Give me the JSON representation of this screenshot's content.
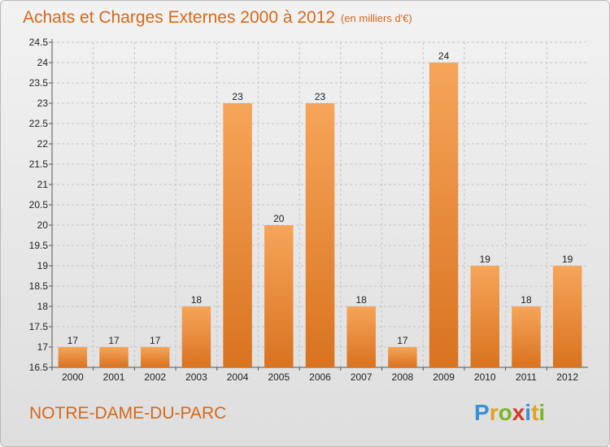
{
  "chart_data": {
    "type": "bar",
    "title": "Achats et Charges Externes 2000 à 2012",
    "subtitle": "(en milliers d'€)",
    "categories": [
      "2000",
      "2001",
      "2002",
      "2003",
      "2004",
      "2005",
      "2006",
      "2007",
      "2008",
      "2009",
      "2010",
      "2011",
      "2012"
    ],
    "values": [
      17,
      17,
      17,
      18,
      23,
      20,
      23,
      18,
      17,
      24,
      19,
      18,
      19
    ],
    "ylim": [
      16.5,
      24.5
    ],
    "yticks": [
      "16.5",
      "17",
      "17.5",
      "18",
      "18.5",
      "19",
      "19.5",
      "20",
      "20.5",
      "21",
      "21.5",
      "22",
      "22.5",
      "23",
      "23.5",
      "24",
      "24.5"
    ],
    "grid": true,
    "bar_color_top": "#f6a55a",
    "bar_color_bottom": "#d9731f"
  },
  "footer": {
    "commune": "NOTRE-DAME-DU-PARC"
  },
  "logo": {
    "letters": [
      "P",
      "r",
      "o",
      "x",
      "i",
      "t",
      "i"
    ],
    "colors": [
      "#3a8fd6",
      "#e8a020",
      "#7cb52c",
      "#d33b2c",
      "#3a8fd6",
      "#e8a020",
      "#7cb52c"
    ]
  }
}
